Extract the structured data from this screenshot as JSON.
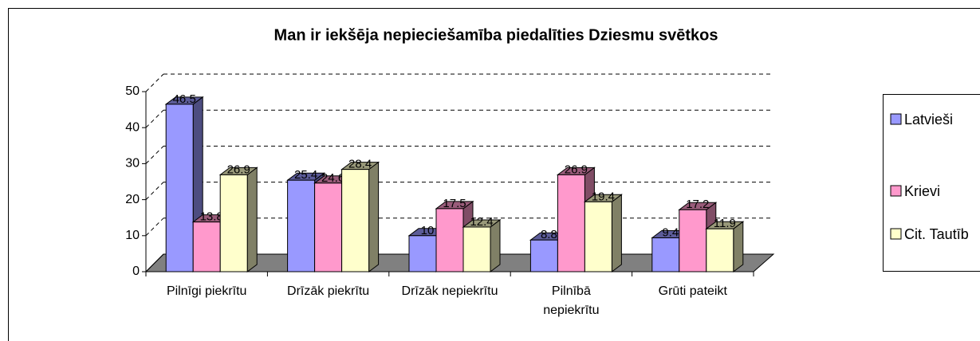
{
  "chart_data": {
    "type": "bar3d",
    "title": "Man ir iekšēja nepieciešamība piedalīties Dziesmu svētkos",
    "categories": [
      "Pilnīgi piekrītu",
      "Drīzāk piekrītu",
      "Drīzāk nepiekrītu",
      "Pilnībā nepiekrītu",
      "Grūti pateikt"
    ],
    "series": [
      {
        "name": "Latvieši",
        "color": "#9999ff",
        "values": [
          46.5,
          25.4,
          10,
          8.8,
          9.4
        ]
      },
      {
        "name": "Krievi",
        "color": "#ff99cc",
        "values": [
          13.8,
          24.6,
          17.5,
          26.9,
          17.2
        ]
      },
      {
        "name": "Cit. Tautīb",
        "color": "#ffffcc",
        "values": [
          26.9,
          28.4,
          12.4,
          19.4,
          11.9
        ]
      }
    ],
    "ylim": [
      0,
      50
    ],
    "yticks": [
      0,
      10,
      20,
      30,
      40,
      50
    ],
    "grid": true,
    "legend": "right"
  }
}
